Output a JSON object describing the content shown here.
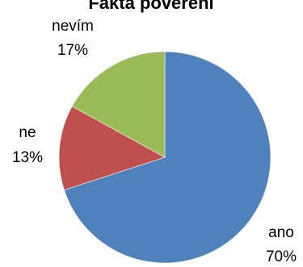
{
  "chart_data": {
    "type": "pie",
    "title": "Fakta pověření",
    "start_angle_deg": 0,
    "direction": "clockwise",
    "legend": "none",
    "slices": [
      {
        "label": "ano",
        "percent_label": "70%",
        "value": 70,
        "color": "#4F81BD"
      },
      {
        "label": "ne",
        "percent_label": "13%",
        "value": 13,
        "color": "#C0504D"
      },
      {
        "label": "nevím",
        "percent_label": "17%",
        "value": 17,
        "color": "#9BBB59"
      }
    ]
  }
}
